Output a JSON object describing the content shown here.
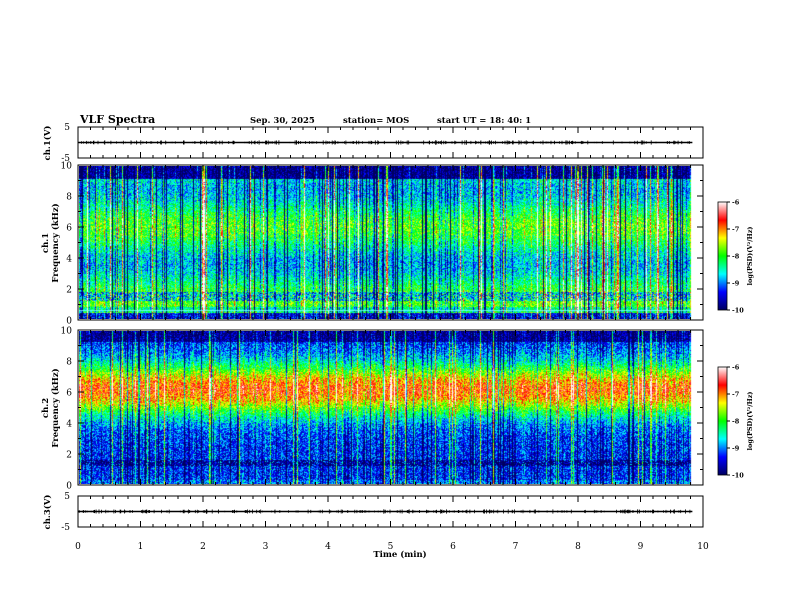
{
  "header": {
    "title": "VLF Spectra",
    "date": "Sep. 30, 2025",
    "station": "station= MOS",
    "start": "start  UT =   18: 40: 1"
  },
  "chart_data": [
    {
      "id": "ch1-waveform",
      "type": "line",
      "ylabel": "ch.1(V)",
      "yticks": [
        "5",
        "-5"
      ],
      "ylim": [
        -5,
        5
      ],
      "xlim": [
        0,
        10
      ],
      "data_x_end": 9.83,
      "baseline": 0
    },
    {
      "id": "ch1-spectrogram",
      "type": "heatmap",
      "ylabel_top": "ch.1",
      "ylabel": "Frequency (kHz)",
      "yticks": [
        "0",
        "2",
        "4",
        "6",
        "8",
        "10"
      ],
      "ylim": [
        0,
        10
      ],
      "xlim": [
        0,
        10
      ],
      "data_x_end": 9.83,
      "colorbar": {
        "label": "log(PSD)(V²/Hz)",
        "ticks": [
          "-6",
          "-7",
          "-8",
          "-9",
          "-10"
        ],
        "range": [
          -10,
          -6
        ]
      }
    },
    {
      "id": "ch2-spectrogram",
      "type": "heatmap",
      "ylabel_top": "ch.2",
      "ylabel": "Frequency (kHz)",
      "yticks": [
        "0",
        "2",
        "4",
        "6",
        "8",
        "10"
      ],
      "ylim": [
        0,
        10
      ],
      "xlim": [
        0,
        10
      ],
      "data_x_end": 9.83,
      "colorbar": {
        "label": "log(PSD)(V²/Hz)",
        "ticks": [
          "-6",
          "-7",
          "-8",
          "-9",
          "-10"
        ],
        "range": [
          -10,
          -6
        ]
      }
    },
    {
      "id": "ch3-waveform",
      "type": "line",
      "ylabel": "ch.3(V)",
      "yticks": [
        "5",
        "-5"
      ],
      "ylim": [
        -5,
        5
      ],
      "xlim": [
        0,
        10
      ],
      "data_x_end": 9.83,
      "baseline": 0
    }
  ],
  "xaxis": {
    "label": "Time (min)",
    "ticks": [
      "0",
      "1",
      "2",
      "3",
      "4",
      "5",
      "6",
      "7",
      "8",
      "9",
      "10"
    ],
    "range": [
      0,
      10
    ]
  },
  "colors": {
    "colormap": [
      "#000060",
      "#0000ff",
      "#00ffff",
      "#00ff00",
      "#ffff00",
      "#ff0000",
      "#ffffff"
    ],
    "background": "#ffffff"
  }
}
